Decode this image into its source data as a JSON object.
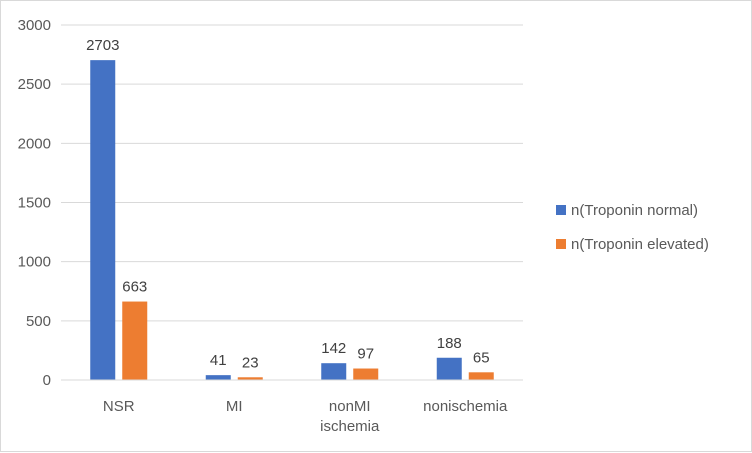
{
  "chart_data": {
    "type": "bar",
    "categories": [
      [
        "NSR"
      ],
      [
        "MI"
      ],
      [
        "nonMI",
        "ischemia"
      ],
      [
        "nonischemia"
      ]
    ],
    "series": [
      {
        "name": "n(Troponin normal)",
        "values": [
          2703,
          41,
          142,
          188
        ],
        "color": "#4472C4"
      },
      {
        "name": "n(Troponin elevated)",
        "values": [
          663,
          23,
          97,
          65
        ],
        "color": "#ED7D31"
      }
    ],
    "ylim": [
      0,
      3000
    ],
    "yticks": [
      0,
      500,
      1000,
      1500,
      2000,
      2500,
      3000
    ],
    "grid": true,
    "legend_position": "right"
  }
}
